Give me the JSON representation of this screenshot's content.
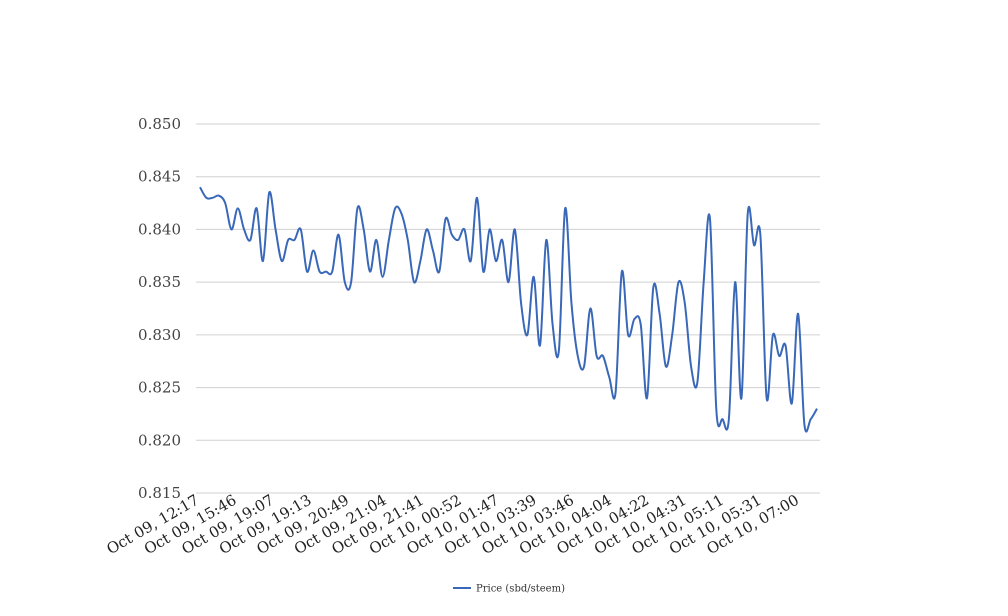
{
  "chart_data": {
    "type": "line",
    "title": "",
    "xlabel": "",
    "ylabel": "",
    "ylim": [
      0.815,
      0.85
    ],
    "grid": true,
    "legend_position": "bottom-center",
    "colors": {
      "line": "#3a68b8",
      "grid": "#d0d0d0"
    },
    "y_ticks": [
      "0.815",
      "0.820",
      "0.825",
      "0.830",
      "0.835",
      "0.840",
      "0.845",
      "0.850"
    ],
    "x_tick_labels": [
      "Oct 09, 12:17",
      "Oct 09, 15:46",
      "Oct 09, 19:07",
      "Oct 09, 19:13",
      "Oct 09, 20:49",
      "Oct 09, 21:04",
      "Oct 09, 21:41",
      "Oct 10, 00:52",
      "Oct 10, 01:47",
      "Oct 10, 03:39",
      "Oct 10, 03:46",
      "Oct 10, 04:04",
      "Oct 10, 04:22",
      "Oct 10, 04:31",
      "Oct 10, 05:11",
      "Oct 10, 05:31",
      "Oct 10, 07:00"
    ],
    "series": [
      {
        "name": "Price (sbd/steem)",
        "values": [
          0.844,
          0.843,
          0.843,
          0.8432,
          0.8425,
          0.84,
          0.842,
          0.84,
          0.839,
          0.842,
          0.837,
          0.8435,
          0.84,
          0.837,
          0.839,
          0.839,
          0.84,
          0.836,
          0.838,
          0.836,
          0.836,
          0.836,
          0.8395,
          0.835,
          0.835,
          0.842,
          0.84,
          0.836,
          0.839,
          0.8355,
          0.839,
          0.842,
          0.8415,
          0.839,
          0.835,
          0.837,
          0.84,
          0.838,
          0.836,
          0.841,
          0.8395,
          0.839,
          0.84,
          0.837,
          0.843,
          0.836,
          0.84,
          0.837,
          0.839,
          0.835,
          0.84,
          0.833,
          0.83,
          0.8355,
          0.829,
          0.839,
          0.831,
          0.8285,
          0.842,
          0.833,
          0.828,
          0.827,
          0.8325,
          0.828,
          0.828,
          0.826,
          0.8245,
          0.836,
          0.83,
          0.8315,
          0.831,
          0.824,
          0.8345,
          0.832,
          0.827,
          0.83,
          0.835,
          0.833,
          0.827,
          0.8255,
          0.835,
          0.841,
          0.823,
          0.822,
          0.822,
          0.835,
          0.824,
          0.8415,
          0.8385,
          0.8395,
          0.824,
          0.83,
          0.828,
          0.829,
          0.8235,
          0.832,
          0.8215,
          0.822,
          0.823
        ]
      }
    ]
  }
}
